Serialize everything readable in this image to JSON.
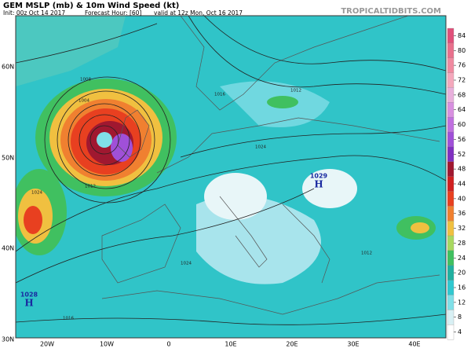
{
  "header": {
    "title": "GEM MSLP (mb) & 10m Wind Speed (kt)",
    "init": "Init: 00z Oct 14 2017",
    "forecast": "Forecast Hour: [60]",
    "valid": "valid at 12z Mon, Oct 16 2017",
    "site": "TROPICALTIDBITS.COM"
  },
  "latitude_labels": [
    "60N",
    "50N",
    "40N",
    "30N"
  ],
  "longitude_labels": [
    "20W",
    "10W",
    "0",
    "10E",
    "20E",
    "30E",
    "40E"
  ],
  "pressure_centers": [
    {
      "value": "1028",
      "symbol": "H"
    },
    {
      "value": "1029",
      "symbol": "H"
    }
  ],
  "contour_labels": [
    "1008",
    "1004",
    "1012",
    "1016",
    "1024",
    "1012",
    "1024",
    "1024",
    "1016",
    "1012"
  ],
  "colorbar": {
    "ticks": [
      84,
      80,
      76,
      72,
      68,
      64,
      60,
      56,
      52,
      48,
      44,
      40,
      36,
      32,
      28,
      24,
      20,
      16,
      12,
      8,
      4
    ],
    "colors": [
      "#e0507a",
      "#e8708c",
      "#f08aa0",
      "#f4a8bc",
      "#e8b0dc",
      "#d890e0",
      "#c070e0",
      "#a050d8",
      "#8030c0",
      "#a01830",
      "#d02020",
      "#e84020",
      "#f08030",
      "#f0c040",
      "#a8d860",
      "#40c060",
      "#20b0a0",
      "#30c8d0",
      "#80e0e8",
      "#d8f0f4",
      "#ffffff"
    ]
  }
}
